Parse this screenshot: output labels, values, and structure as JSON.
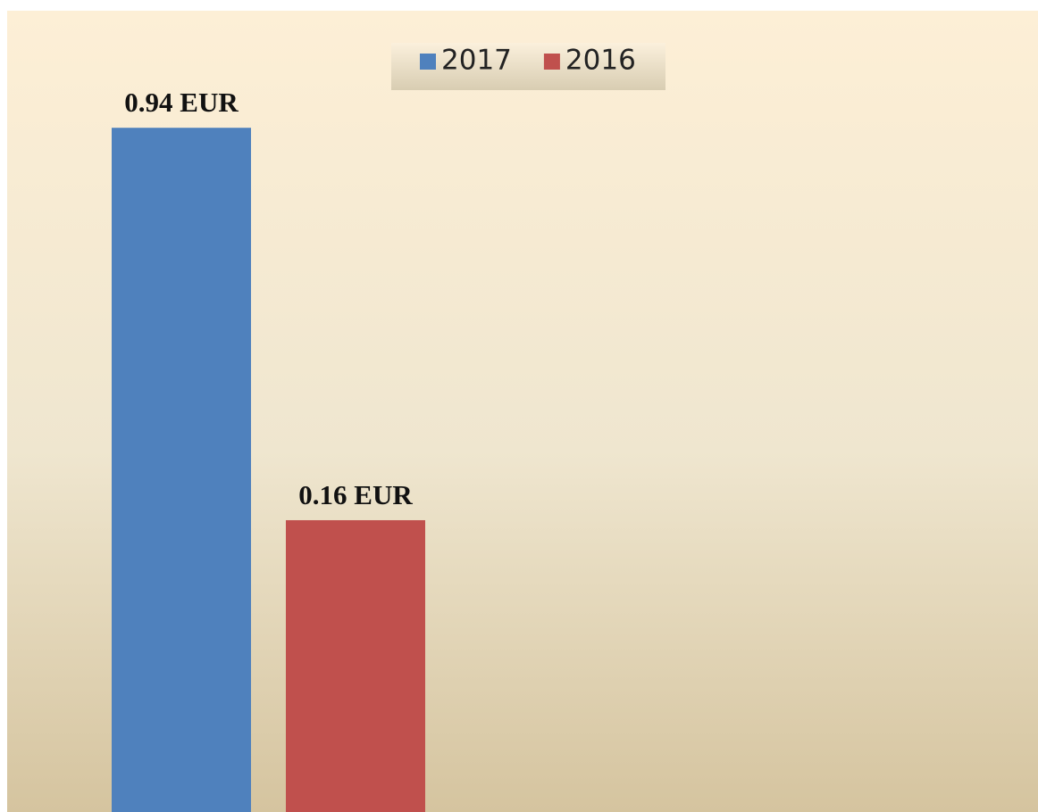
{
  "chart_data": {
    "type": "bar",
    "categories": [
      null
    ],
    "series": [
      {
        "name": "2017",
        "color": "#4f81bd",
        "values": [
          0.94
        ],
        "value_labels": [
          "0.94 EUR"
        ]
      },
      {
        "name": "2016",
        "color": "#c0504d",
        "values": [
          0.16
        ],
        "value_labels": [
          "0.16 EUR"
        ]
      }
    ],
    "ylim": [
      -0.42,
      1.1
    ],
    "legend": "top"
  }
}
